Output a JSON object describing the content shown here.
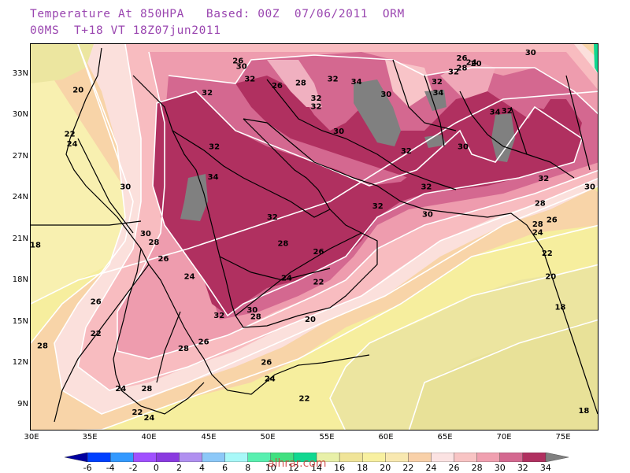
{
  "header": {
    "line1": "Temperature At 850HPA   Based: 00Z  07/06/2011  ORM",
    "line2": "00MS  T+18 VT 18Z07jun2011"
  },
  "watermark": "alhrar.com",
  "axes": {
    "lat_labels": [
      "33N",
      "30N",
      "27N",
      "24N",
      "21N",
      "18N",
      "15N",
      "12N",
      "9N"
    ],
    "lon_labels": [
      "30E",
      "35E",
      "40E",
      "45E",
      "50E",
      "55E",
      "60E",
      "65E",
      "70E",
      "75E"
    ]
  },
  "colorbar": {
    "labels": [
      "-6",
      "-4",
      "-2",
      "0",
      "2",
      "4",
      "6",
      "8",
      "10",
      "12",
      "14",
      "16",
      "18",
      "20",
      "22",
      "24",
      "26",
      "28",
      "30",
      "32",
      "34"
    ],
    "colors": [
      "#0000a0",
      "#0040ff",
      "#3399ff",
      "#a050ff",
      "#8a3ae0",
      "#b090f0",
      "#8cc8f8",
      "#a8f8f8",
      "#58f0b0",
      "#40e080",
      "#10d890",
      "#e8f0a8",
      "#f0e498",
      "#f8f0a0",
      "#f8e8b0",
      "#f8d0a8",
      "#fbe2e2",
      "#f8c4c4",
      "#f0a0b0",
      "#d46890",
      "#b03060",
      "#808080"
    ]
  },
  "chart_data": {
    "type": "heatmap",
    "variable": "Temperature At 850HPA",
    "lon_range": [
      30,
      78
    ],
    "lat_range": [
      7,
      35
    ],
    "contour_levels": [
      18,
      20,
      22,
      24,
      26,
      28,
      30,
      32,
      34
    ],
    "isotherm_labels": [
      {
        "value": 26,
        "lon": 47.5,
        "lat": 33.6
      },
      {
        "value": 30,
        "lon": 47.8,
        "lat": 33.2
      },
      {
        "value": 32,
        "lon": 48.5,
        "lat": 32.3
      },
      {
        "value": 26,
        "lon": 50.8,
        "lat": 31.8
      },
      {
        "value": 28,
        "lon": 52.8,
        "lat": 32.0
      },
      {
        "value": 32,
        "lon": 55.5,
        "lat": 32.3
      },
      {
        "value": 34,
        "lon": 57.5,
        "lat": 32.1
      },
      {
        "value": 32,
        "lon": 54.1,
        "lat": 30.9
      },
      {
        "value": 32,
        "lon": 54.1,
        "lat": 30.3
      },
      {
        "value": 30,
        "lon": 60.0,
        "lat": 31.2
      },
      {
        "value": 30,
        "lon": 56.0,
        "lat": 28.5
      },
      {
        "value": 32,
        "lon": 44.9,
        "lat": 31.3
      },
      {
        "value": 32,
        "lon": 45.5,
        "lat": 27.4
      },
      {
        "value": 34,
        "lon": 45.4,
        "lat": 25.2
      },
      {
        "value": 32,
        "lon": 50.4,
        "lat": 22.3
      },
      {
        "value": 32,
        "lon": 61.7,
        "lat": 27.1
      },
      {
        "value": 32,
        "lon": 63.4,
        "lat": 24.5
      },
      {
        "value": 32,
        "lon": 59.3,
        "lat": 23.1
      },
      {
        "value": 30,
        "lon": 63.5,
        "lat": 22.5
      },
      {
        "value": 32,
        "lon": 64.3,
        "lat": 32.1
      },
      {
        "value": 34,
        "lon": 64.4,
        "lat": 31.3
      },
      {
        "value": 32,
        "lon": 65.7,
        "lat": 32.8
      },
      {
        "value": 28,
        "lon": 66.4,
        "lat": 33.1
      },
      {
        "value": 24,
        "lon": 67.2,
        "lat": 33.5
      },
      {
        "value": 20,
        "lon": 67.6,
        "lat": 33.4
      },
      {
        "value": 26,
        "lon": 66.4,
        "lat": 33.8
      },
      {
        "value": 30,
        "lon": 72.2,
        "lat": 34.2
      },
      {
        "value": 34,
        "lon": 69.2,
        "lat": 29.9
      },
      {
        "value": 32,
        "lon": 70.2,
        "lat": 30.0
      },
      {
        "value": 30,
        "lon": 66.5,
        "lat": 27.4
      },
      {
        "value": 32,
        "lon": 73.3,
        "lat": 25.1
      },
      {
        "value": 30,
        "lon": 77.2,
        "lat": 24.5
      },
      {
        "value": 28,
        "lon": 73.0,
        "lat": 23.3
      },
      {
        "value": 26,
        "lon": 74.0,
        "lat": 22.1
      },
      {
        "value": 28,
        "lon": 72.8,
        "lat": 21.8
      },
      {
        "value": 24,
        "lon": 72.8,
        "lat": 21.2
      },
      {
        "value": 22,
        "lon": 73.6,
        "lat": 19.7
      },
      {
        "value": 20,
        "lon": 73.9,
        "lat": 18.0
      },
      {
        "value": 18,
        "lon": 74.7,
        "lat": 15.8
      },
      {
        "value": 18,
        "lon": 76.7,
        "lat": 8.3
      },
      {
        "value": 28,
        "lon": 51.3,
        "lat": 20.4
      },
      {
        "value": 26,
        "lon": 54.3,
        "lat": 19.8
      },
      {
        "value": 24,
        "lon": 51.6,
        "lat": 17.9
      },
      {
        "value": 22,
        "lon": 54.3,
        "lat": 17.6
      },
      {
        "value": 20,
        "lon": 53.6,
        "lat": 14.9
      },
      {
        "value": 22,
        "lon": 53.1,
        "lat": 9.2
      },
      {
        "value": 24,
        "lon": 50.2,
        "lat": 10.6
      },
      {
        "value": 26,
        "lon": 49.9,
        "lat": 11.8
      },
      {
        "value": 30,
        "lon": 48.7,
        "lat": 15.6
      },
      {
        "value": 28,
        "lon": 49.0,
        "lat": 15.1
      },
      {
        "value": 32,
        "lon": 45.9,
        "lat": 15.2
      },
      {
        "value": 26,
        "lon": 44.6,
        "lat": 13.3
      },
      {
        "value": 28,
        "lon": 42.9,
        "lat": 12.8
      },
      {
        "value": 24,
        "lon": 43.4,
        "lat": 18.0
      },
      {
        "value": 26,
        "lon": 41.2,
        "lat": 19.3
      },
      {
        "value": 28,
        "lon": 40.4,
        "lat": 20.5
      },
      {
        "value": 30,
        "lon": 39.7,
        "lat": 21.1
      },
      {
        "value": 30,
        "lon": 38.0,
        "lat": 24.5
      },
      {
        "value": 26,
        "lon": 35.5,
        "lat": 16.2
      },
      {
        "value": 22,
        "lon": 35.5,
        "lat": 13.9
      },
      {
        "value": 28,
        "lon": 31.0,
        "lat": 13.0
      },
      {
        "value": 18,
        "lon": 30.4,
        "lat": 20.3
      },
      {
        "value": 24,
        "lon": 37.6,
        "lat": 9.9
      },
      {
        "value": 28,
        "lon": 39.8,
        "lat": 9.9
      },
      {
        "value": 22,
        "lon": 39.0,
        "lat": 8.2
      },
      {
        "value": 24,
        "lon": 40.0,
        "lat": 7.8
      },
      {
        "value": 20,
        "lon": 34.0,
        "lat": 31.5
      },
      {
        "value": 22,
        "lon": 33.3,
        "lat": 28.3
      },
      {
        "value": 24,
        "lon": 33.5,
        "lat": 27.6
      }
    ]
  }
}
